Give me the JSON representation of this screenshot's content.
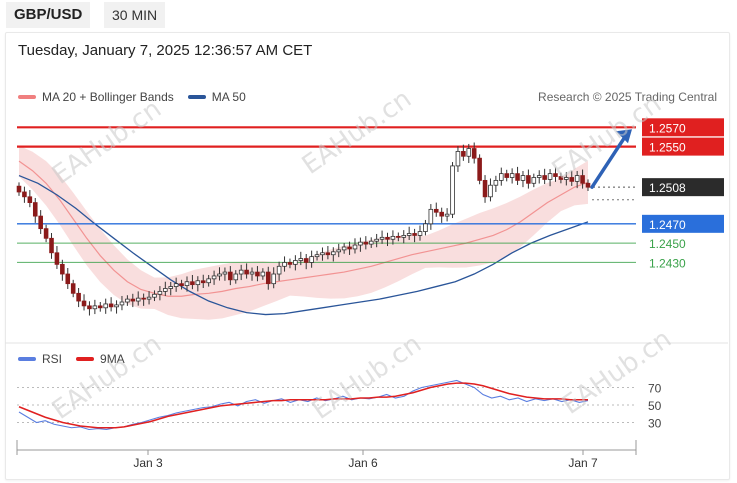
{
  "header": {
    "symbol": "GBP/USD",
    "interval": "30 MIN"
  },
  "timestamp": "Tuesday, January 7, 2025 12:36:57 AM CET",
  "legend": {
    "bollinger_label": "MA 20 + Bollinger Bands",
    "ma50_label": "MA 50",
    "bollinger_color": "#f07f7f",
    "ma50_color": "#2a5599"
  },
  "attribution": "Research © 2025 Trading Central",
  "rsi_legend": {
    "rsi_label": "RSI",
    "ma_label": "9MA",
    "rsi_color": "#5a7ee0",
    "ma_color": "#e02020"
  },
  "watermark_text": "EAHub.cn",
  "chart_data": [
    {
      "type": "candlestick",
      "series_name": "GBP/USD",
      "x_tick_labels": [
        "Jan 3",
        "Jan 6",
        "Jan 7"
      ],
      "levels": [
        {
          "value": 1.257,
          "label": "1.2570",
          "color": "#e02020",
          "style": "resistance"
        },
        {
          "value": 1.255,
          "label": "1.2550",
          "color": "#e02020",
          "style": "resistance"
        },
        {
          "value": 1.2508,
          "label": "1.2508",
          "color": "#333333",
          "style": "last-price"
        },
        {
          "value": 1.247,
          "label": "1.2470",
          "color": "#2a6fdb",
          "style": "pivot"
        },
        {
          "value": 1.245,
          "label": "1.2450",
          "color": "#3aa24a",
          "style": "support"
        },
        {
          "value": 1.243,
          "label": "1.2430",
          "color": "#3aa24a",
          "style": "support"
        }
      ],
      "close_prices": [
        1.2503,
        1.2498,
        1.2492,
        1.2478,
        1.2465,
        1.2455,
        1.244,
        1.2428,
        1.2418,
        1.2408,
        1.2398,
        1.239,
        1.2385,
        1.2382,
        1.2385,
        1.2383,
        1.2387,
        1.2384,
        1.2386,
        1.2389,
        1.2392,
        1.239,
        1.2393,
        1.2392,
        1.2394,
        1.2397,
        1.24,
        1.2403,
        1.2405,
        1.2408,
        1.2406,
        1.241,
        1.2407,
        1.2411,
        1.2409,
        1.2413,
        1.2416,
        1.2418,
        1.242,
        1.2412,
        1.2418,
        1.2422,
        1.2418,
        1.242,
        1.2416,
        1.242,
        1.2408,
        1.2418,
        1.2426,
        1.243,
        1.2428,
        1.2432,
        1.2434,
        1.243,
        1.2436,
        1.2438,
        1.244,
        1.2438,
        1.2441,
        1.2443,
        1.2446,
        1.2444,
        1.2448,
        1.2451,
        1.2449,
        1.2452,
        1.2454,
        1.2456,
        1.2454,
        1.2457,
        1.2456,
        1.2458,
        1.246,
        1.2458,
        1.2462,
        1.247,
        1.2485,
        1.2482,
        1.2478,
        1.248,
        1.253,
        1.2545,
        1.254,
        1.2548,
        1.2538,
        1.2515,
        1.2498,
        1.251,
        1.2515,
        1.2522,
        1.2518,
        1.2522,
        1.2515,
        1.252,
        1.2512,
        1.2518,
        1.252,
        1.2516,
        1.2522,
        1.2519,
        1.2516,
        1.2518,
        1.2514,
        1.252,
        1.2512,
        1.2508
      ],
      "projection": {
        "from": 1.2508,
        "to": 1.257
      },
      "ma20": [
        1.2535,
        1.2525,
        1.2512,
        1.2495,
        1.2475,
        1.2455,
        1.2437,
        1.2422,
        1.241,
        1.2402,
        1.2398,
        1.2395,
        1.2395,
        1.2397,
        1.2398,
        1.24,
        1.2403,
        1.2405,
        1.2408,
        1.241,
        1.2412,
        1.2414,
        1.2416,
        1.2418,
        1.242,
        1.2423,
        1.2426,
        1.243,
        1.2434,
        1.2438,
        1.2441,
        1.2444,
        1.2447,
        1.245,
        1.2454,
        1.2458,
        1.2464,
        1.2472,
        1.2482,
        1.2492,
        1.25,
        1.2508,
        1.2513
      ],
      "ma50": [
        1.252,
        1.2512,
        1.25,
        1.2486,
        1.247,
        1.2455,
        1.244,
        1.2426,
        1.2412,
        1.24,
        1.239,
        1.2383,
        1.2378,
        1.2376,
        1.2377,
        1.238,
        1.2383,
        1.2386,
        1.2389,
        1.2392,
        1.2396,
        1.24,
        1.2405,
        1.241,
        1.2418,
        1.2428,
        1.244,
        1.245,
        1.2458,
        1.2465,
        1.2472
      ]
    },
    {
      "type": "line",
      "title": "RSI",
      "y_ticks": [
        30,
        50,
        70
      ],
      "series": [
        {
          "name": "RSI",
          "values": [
            42,
            36,
            30,
            32,
            28,
            26,
            24,
            25,
            22,
            23,
            22,
            24,
            25,
            28,
            30,
            33,
            36,
            38,
            41,
            43,
            45,
            47,
            48,
            51,
            53,
            49,
            54,
            56,
            52,
            55,
            57,
            53,
            56,
            54,
            58,
            55,
            57,
            60,
            56,
            58,
            57,
            59,
            62,
            58,
            60,
            66,
            70,
            72,
            74,
            76,
            78,
            74,
            70,
            62,
            58,
            60,
            56,
            58,
            54,
            57,
            55,
            57,
            54,
            56,
            53,
            55
          ]
        },
        {
          "name": "9MA",
          "values": [
            48,
            44,
            40,
            36,
            33,
            30,
            28,
            26,
            25,
            24,
            24,
            24,
            25,
            27,
            29,
            31,
            34,
            37,
            39,
            41,
            43,
            45,
            47,
            49,
            50,
            51,
            52,
            53,
            54,
            55,
            55,
            56,
            56,
            56,
            56,
            56,
            57,
            57,
            57,
            58,
            58,
            59,
            59,
            60,
            62,
            64,
            67,
            70,
            72,
            74,
            75,
            75,
            74,
            72,
            69,
            66,
            63,
            61,
            59,
            58,
            57,
            57,
            57,
            56,
            56,
            56
          ]
        }
      ]
    }
  ]
}
